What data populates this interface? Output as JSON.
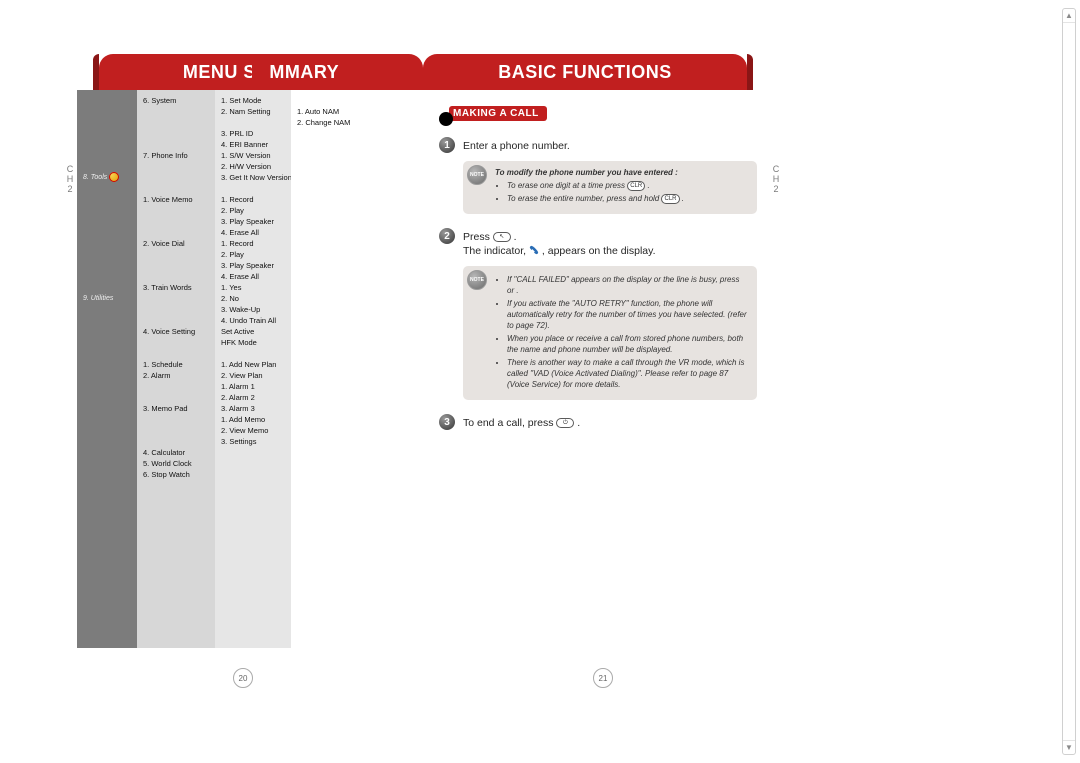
{
  "left": {
    "header": "MENU SUMMARY",
    "chTab": {
      "c": "C",
      "h": "H",
      "n": "2"
    },
    "col0": [
      {
        "t": "",
        "cls": "spacer-md"
      },
      {
        "t": "",
        "cls": "spacer-md"
      },
      {
        "t": "",
        "cls": "spacer-md"
      },
      {
        "t": "",
        "cls": "spacer-sm"
      },
      {
        "t": "8. Tools",
        "icon": true
      },
      {
        "t": "",
        "cls": "spacer-md"
      },
      {
        "t": "",
        "cls": "spacer-md"
      },
      {
        "t": "",
        "cls": "spacer-md"
      },
      {
        "t": "",
        "cls": "spacer-md"
      },
      {
        "t": "",
        "cls": "spacer-md"
      },
      {
        "t": "9. Utilities"
      }
    ],
    "col1": [
      {
        "t": "6. System"
      },
      {
        "t": ""
      },
      {
        "t": ""
      },
      {
        "t": ""
      },
      {
        "t": ""
      },
      {
        "t": "7. Phone Info"
      },
      {
        "t": ""
      },
      {
        "t": ""
      },
      {
        "t": ""
      },
      {
        "t": "1. Voice Memo"
      },
      {
        "t": ""
      },
      {
        "t": ""
      },
      {
        "t": ""
      },
      {
        "t": "2. Voice Dial"
      },
      {
        "t": ""
      },
      {
        "t": ""
      },
      {
        "t": ""
      },
      {
        "t": "3. Train Words"
      },
      {
        "t": ""
      },
      {
        "t": ""
      },
      {
        "t": ""
      },
      {
        "t": "4. Voice Setting"
      },
      {
        "t": ""
      },
      {
        "t": ""
      },
      {
        "t": "1. Schedule"
      },
      {
        "t": "2. Alarm"
      },
      {
        "t": ""
      },
      {
        "t": ""
      },
      {
        "t": "3. Memo Pad"
      },
      {
        "t": ""
      },
      {
        "t": ""
      },
      {
        "t": ""
      },
      {
        "t": "4. Calculator"
      },
      {
        "t": "5. World Clock"
      },
      {
        "t": "6. Stop Watch"
      }
    ],
    "col2": [
      {
        "t": "1. Set Mode"
      },
      {
        "t": "2. Nam Setting"
      },
      {
        "t": ""
      },
      {
        "t": "3. PRL ID"
      },
      {
        "t": "4. ERI Banner"
      },
      {
        "t": "1. S/W Version"
      },
      {
        "t": "2. H/W Version"
      },
      {
        "t": "3. Get It Now Version"
      },
      {
        "t": ""
      },
      {
        "t": "1. Record"
      },
      {
        "t": "2. Play"
      },
      {
        "t": "3. Play Speaker"
      },
      {
        "t": "4. Erase All"
      },
      {
        "t": "1. Record"
      },
      {
        "t": "2. Play"
      },
      {
        "t": "3. Play Speaker"
      },
      {
        "t": "4. Erase All"
      },
      {
        "t": "1. Yes"
      },
      {
        "t": "2. No"
      },
      {
        "t": "3. Wake-Up"
      },
      {
        "t": "4. Undo Train All"
      },
      {
        "t": "Set Active"
      },
      {
        "t": "HFK Mode"
      },
      {
        "t": ""
      },
      {
        "t": "1. Add New Plan"
      },
      {
        "t": "2. View Plan"
      },
      {
        "t": "1. Alarm 1"
      },
      {
        "t": "2. Alarm 2"
      },
      {
        "t": "3. Alarm 3"
      },
      {
        "t": "1. Add Memo"
      },
      {
        "t": "2. View Memo"
      },
      {
        "t": "3. Settings"
      }
    ],
    "col3": [
      {
        "t": ""
      },
      {
        "t": "1. Auto NAM"
      },
      {
        "t": "2. Change NAM"
      }
    ],
    "pageNum": "20"
  },
  "right": {
    "header": "BASIC FUNCTIONS",
    "chTab": {
      "c": "C",
      "h": "H",
      "n": "2"
    },
    "section": "MAKING A CALL",
    "step1": "Enter a phone number.",
    "note1": {
      "title": "To modify the phone number you have entered :",
      "items": [
        "To erase one digit at a time press",
        "To erase the entire number, press and hold"
      ]
    },
    "step2a": "Press",
    "step2b": "The indicator,",
    "step2c": ", appears on the display.",
    "note2": {
      "items": [
        "If \"CALL FAILED\" appears on the display or the line is busy, press       or      .",
        "If you activate the \"AUTO RETRY\" function, the phone will automatically retry for the number of times you have selected. (refer to page 72).",
        "When you place or receive a call from stored phone numbers, both the name and phone number will be displayed.",
        "There is another way to make a call through the VR mode, which is called \"VAD (Voice Activated Dialing)\". Please refer to page 87 (Voice Service) for more details."
      ]
    },
    "step3": "To end a call, press",
    "pageNum": "21"
  }
}
